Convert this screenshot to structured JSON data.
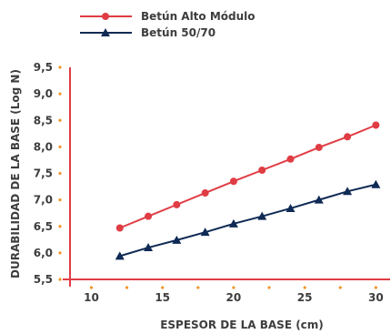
{
  "chart_data": {
    "type": "line",
    "xlabel": "ESPESOR DE LA BASE (cm)",
    "ylabel": "DURABILIDAD DE LA BASE (Log N)",
    "xlim": [
      8.5,
      31
    ],
    "ylim": [
      5.5,
      9.5
    ],
    "xticks": [
      10,
      15,
      20,
      25,
      30
    ],
    "xtick_labels": [
      "10",
      "15",
      "20",
      "25",
      "30"
    ],
    "yticks": [
      5.5,
      6.0,
      6.5,
      7.0,
      7.5,
      8.0,
      8.5,
      9.0,
      9.5
    ],
    "ytick_labels": [
      "5,5",
      "6,0",
      "6,5",
      "7,0",
      "7,5",
      "8,0",
      "8,5",
      "9,0",
      "9,5"
    ],
    "x": [
      12,
      14,
      16,
      18,
      20,
      22,
      24,
      26,
      28,
      30
    ],
    "series": [
      {
        "name": "Betún Alto Módulo",
        "color": "#e03c44",
        "marker": "circle",
        "values": [
          6.47,
          6.69,
          6.91,
          7.13,
          7.35,
          7.56,
          7.77,
          7.99,
          8.19,
          8.41
        ]
      },
      {
        "name": "Betún 50/70",
        "color": "#0f2a55",
        "marker": "triangle",
        "values": [
          5.94,
          6.1,
          6.24,
          6.39,
          6.55,
          6.69,
          6.84,
          7.0,
          7.16,
          7.29
        ]
      }
    ],
    "grid": false,
    "legend": "top-left",
    "axis_color": "#e03c44",
    "dot_color": "#f0962a"
  }
}
